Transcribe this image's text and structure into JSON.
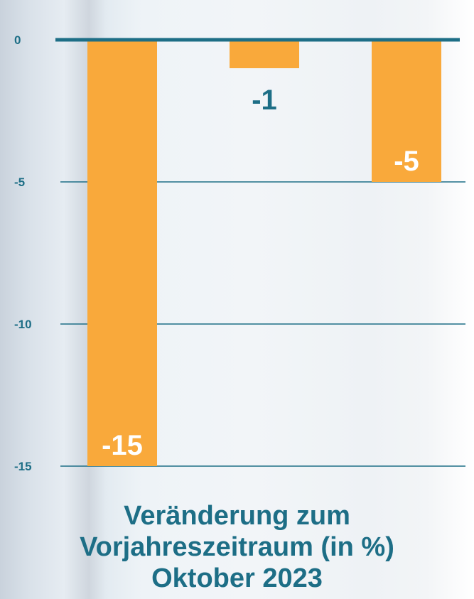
{
  "chart_data": {
    "type": "bar",
    "categories": [
      "",
      "",
      ""
    ],
    "values": [
      -15,
      -1,
      -5
    ],
    "value_labels": [
      "-15",
      "-1",
      "-5"
    ],
    "yticks": [
      0,
      -5,
      -10,
      -15
    ],
    "ytick_labels": [
      "0",
      "-5",
      "-10",
      "-15"
    ],
    "ylim": [
      -15,
      0
    ],
    "grid": true,
    "title_lines": [
      "Veränderung zum",
      "Vorjahreszeitraum (in %)",
      "Oktober 2023"
    ],
    "xlabel": "",
    "ylabel": ""
  },
  "colors": {
    "bar": "#f9a93b",
    "axis": "#1d6e86",
    "label_inside": "#ffffff",
    "label_outside": "#1d6e86"
  }
}
